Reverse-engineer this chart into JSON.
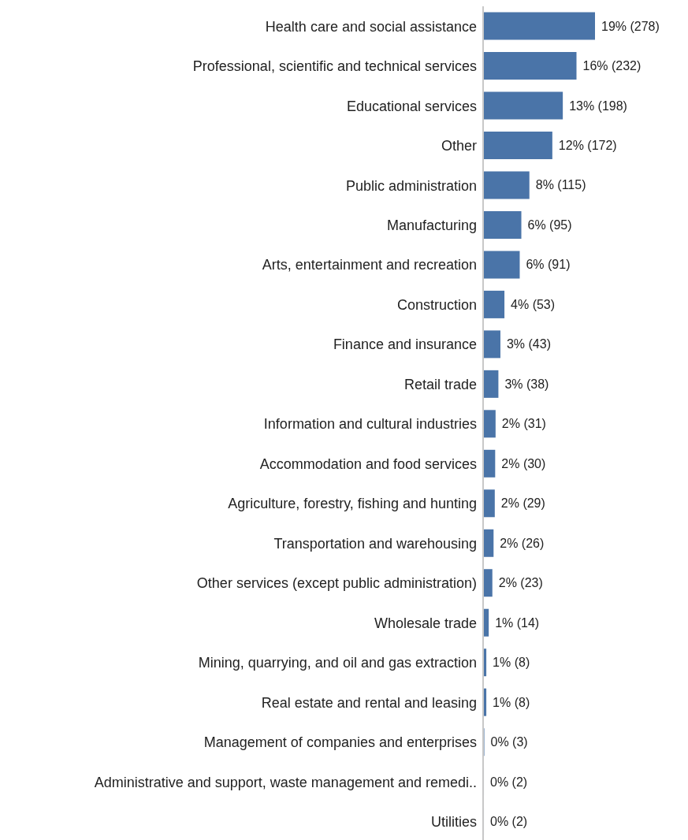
{
  "chart_data": {
    "type": "bar",
    "orientation": "horizontal",
    "color": "#4a74a8",
    "categories": [
      "Health care and social assistance",
      "Professional, scientific and technical services",
      "Educational services",
      "Other",
      "Public administration",
      "Manufacturing",
      "Arts, entertainment and recreation",
      "Construction",
      "Finance and insurance",
      "Retail trade",
      "Information and cultural industries",
      "Accommodation and food services",
      "Agriculture, forestry, fishing and hunting",
      "Transportation and warehousing",
      "Other services (except public administration)",
      "Wholesale trade",
      "Mining, quarrying, and oil and gas extraction",
      "Real estate and rental and leasing",
      "Management of companies and enterprises",
      "Administrative and support, waste management and remedi..",
      "Utilities"
    ],
    "values": [
      278,
      232,
      198,
      172,
      115,
      95,
      91,
      53,
      43,
      38,
      31,
      30,
      29,
      26,
      23,
      14,
      8,
      8,
      3,
      2,
      2
    ],
    "value_labels": [
      "19% (278)",
      "16% (232)",
      "13% (198)",
      "12% (172)",
      "8% (115)",
      "6% (95)",
      "6% (91)",
      "4% (53)",
      "3% (43)",
      "3% (38)",
      "2% (31)",
      "2% (30)",
      "2% (29)",
      "2% (26)",
      "2% (23)",
      "1% (14)",
      "1% (8)",
      "1% (8)",
      "0% (3)",
      "0% (2)",
      "0% (2)"
    ]
  }
}
